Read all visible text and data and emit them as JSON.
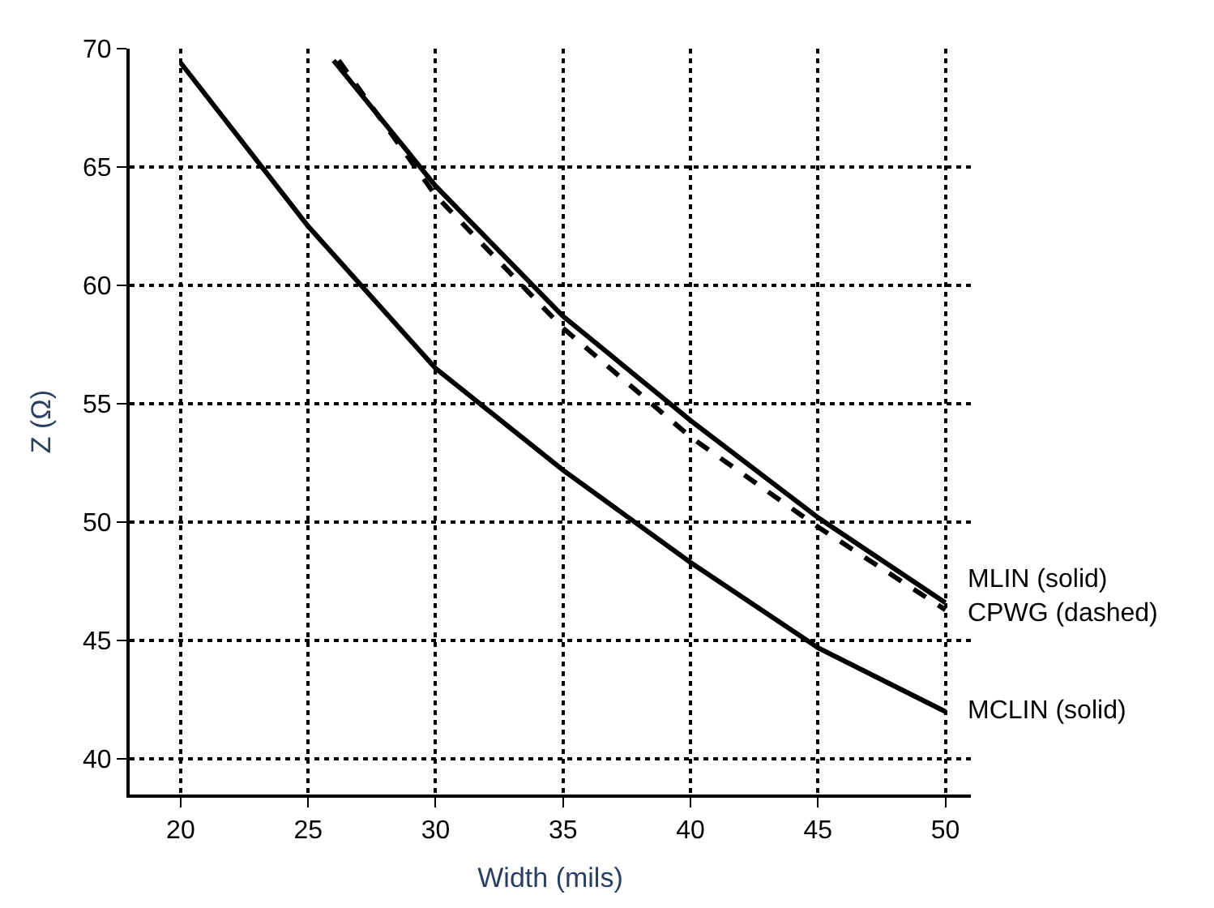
{
  "chart_data": {
    "type": "line",
    "xlabel": "Width (mils)",
    "ylabel": "Z (Ω)",
    "xlim": [
      18,
      51
    ],
    "xticks": [
      20,
      25,
      30,
      35,
      40,
      45,
      50
    ],
    "ylim": [
      38.5,
      70
    ],
    "yticks": [
      40,
      45,
      50,
      55,
      60,
      65,
      70
    ],
    "grid": true,
    "legend": false,
    "marker": "none",
    "series": [
      {
        "name": "MLIN (solid)",
        "color": "#000000",
        "line_style": "solid",
        "x": [
          26,
          30,
          35,
          40,
          45,
          50
        ],
        "values": [
          69.5,
          64.2,
          58.7,
          54.3,
          50.2,
          46.6
        ]
      },
      {
        "name": "CPWG (dashed)",
        "color": "#000000",
        "line_style": "dashed",
        "x": [
          26.2,
          30,
          35,
          40,
          45,
          50
        ],
        "values": [
          69.5,
          63.8,
          58.2,
          53.6,
          49.8,
          46.3
        ]
      },
      {
        "name": "MCLIN (solid)",
        "color": "#000000",
        "line_style": "solid",
        "x": [
          20,
          25,
          30,
          35,
          40,
          45,
          50
        ],
        "values": [
          69.4,
          62.5,
          56.5,
          52.2,
          48.3,
          44.7,
          42.0
        ]
      }
    ]
  }
}
